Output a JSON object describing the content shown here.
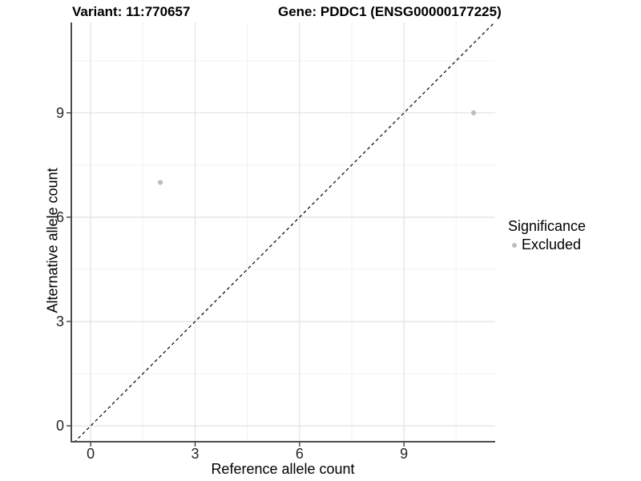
{
  "chart_data": {
    "type": "scatter",
    "titles": {
      "left": "Variant: 11:770657",
      "right": "Gene: PDDC1 (ENSG00000177225)"
    },
    "xlabel": "Reference allele count",
    "ylabel": "Alternative allele count",
    "xlim": [
      -0.58,
      11.62
    ],
    "ylim": [
      -0.48,
      11.6
    ],
    "x_major_ticks": [
      0,
      3,
      6,
      9
    ],
    "y_major_ticks": [
      0,
      3,
      6,
      9
    ],
    "x_minor_gridlines": [
      1.5,
      4.5,
      7.5,
      10.5
    ],
    "y_minor_gridlines": [
      1.5,
      4.5,
      7.5,
      10.5
    ],
    "grid": "major-and-minor",
    "reference_line": {
      "equation": "y = x",
      "style": "dashed",
      "color": "#000000"
    },
    "series": [
      {
        "name": "Excluded",
        "color": "#bdbdbd",
        "points": [
          {
            "x": 2,
            "y": 7
          },
          {
            "x": 11,
            "y": 9
          }
        ]
      }
    ],
    "legend": {
      "title": "Significance",
      "position": "right",
      "entries": [
        {
          "label": "Excluded",
          "color": "#bdbdbd"
        }
      ]
    },
    "colors": {
      "background": "#ffffff",
      "grid_major": "#e4e4e4",
      "grid_minor": "#f2f2f2",
      "axis_line": "#4d4d4d",
      "tick_mark": "#333333"
    }
  }
}
